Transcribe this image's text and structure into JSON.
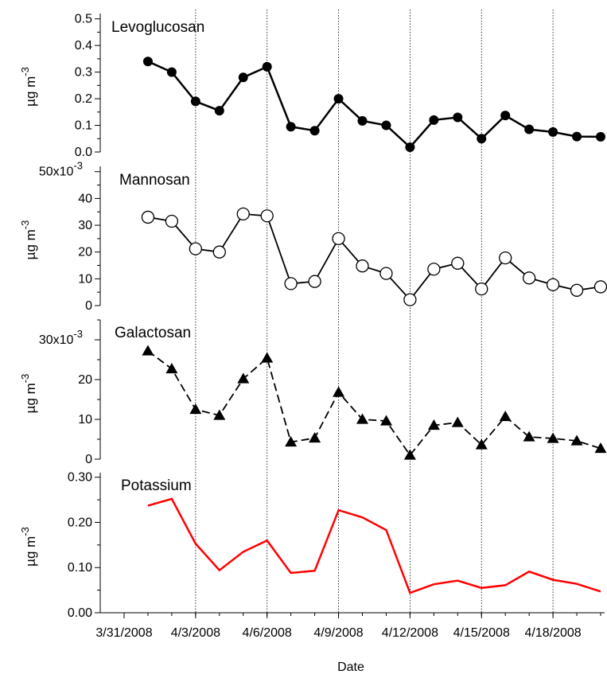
{
  "chart_data": {
    "type": "line",
    "x_type": "date",
    "xlabel": "Date",
    "x_ticks": [
      "3/31/2008",
      "4/3/2008",
      "4/6/2008",
      "4/9/2008",
      "4/12/2008",
      "4/15/2008",
      "4/18/2008"
    ],
    "x_range": [
      "2008-03-31",
      "2008-04-20"
    ],
    "dates": [
      "2008-04-01",
      "2008-04-02",
      "2008-04-03",
      "2008-04-04",
      "2008-04-05",
      "2008-04-06",
      "2008-04-07",
      "2008-04-08",
      "2008-04-09",
      "2008-04-10",
      "2008-04-11",
      "2008-04-12",
      "2008-04-13",
      "2008-04-14",
      "2008-04-15",
      "2008-04-16",
      "2008-04-17",
      "2008-04-18",
      "2008-04-19",
      "2008-04-20"
    ],
    "grid": "vertical dotted lines at x ticks",
    "panels": [
      {
        "title": "Levoglucosan",
        "ylabel": "µg m",
        "ylabel_sup": "-3",
        "ylim": [
          0,
          0.52
        ],
        "y_ticks": [
          "0.0",
          "0.1",
          "0.2",
          "0.3",
          "0.4",
          "0.5"
        ],
        "marker": "filled-circle",
        "line_style": "solid",
        "color": "#000000",
        "values": [
          0.34,
          0.3,
          0.19,
          0.155,
          0.28,
          0.32,
          0.095,
          0.08,
          0.2,
          0.117,
          0.1,
          0.018,
          0.12,
          0.13,
          0.05,
          0.137,
          0.085,
          0.075,
          0.058,
          0.057
        ]
      },
      {
        "title": "Mannosan",
        "ylabel": "µg m",
        "ylabel_sup": "-3",
        "ylim": [
          0,
          0.052
        ],
        "y_ticks": [
          "0",
          "10",
          "20",
          "30",
          "40",
          "50x10"
        ],
        "y_top_sup": "-3",
        "marker": "open-circle",
        "line_style": "solid",
        "color": "#000000",
        "values": [
          0.033,
          0.0315,
          0.0212,
          0.02,
          0.0342,
          0.0335,
          0.0082,
          0.009,
          0.025,
          0.0148,
          0.012,
          0.0022,
          0.0136,
          0.0158,
          0.0062,
          0.0178,
          0.0103,
          0.0078,
          0.0057,
          0.007
        ]
      },
      {
        "title": "Galactosan",
        "ylabel": "µg m",
        "ylabel_sup": "-3",
        "ylim": [
          0,
          0.035
        ],
        "y_ticks": [
          "0",
          "10",
          "20",
          "30x10"
        ],
        "y_top_sup": "-3",
        "marker": "filled-triangle",
        "line_style": "dashed",
        "color": "#000000",
        "values": [
          0.0272,
          0.0227,
          0.0125,
          0.011,
          0.0202,
          0.0254,
          0.0043,
          0.0053,
          0.0168,
          0.01,
          0.0096,
          0.001,
          0.0085,
          0.0092,
          0.0036,
          0.0107,
          0.0056,
          0.0052,
          0.0046,
          0.0027
        ]
      },
      {
        "title": "Potassium",
        "ylabel": "µg m",
        "ylabel_sup": "-3",
        "ylim": [
          0,
          0.31
        ],
        "y_ticks": [
          "0.00",
          "0.10",
          "0.20",
          "0.30"
        ],
        "marker": "none",
        "line_style": "solid",
        "color": "#ff0000",
        "values": [
          0.237,
          0.252,
          0.153,
          0.094,
          0.135,
          0.16,
          0.088,
          0.093,
          0.227,
          0.211,
          0.183,
          0.044,
          0.063,
          0.071,
          0.055,
          0.061,
          0.091,
          0.073,
          0.064,
          0.047
        ]
      }
    ]
  }
}
